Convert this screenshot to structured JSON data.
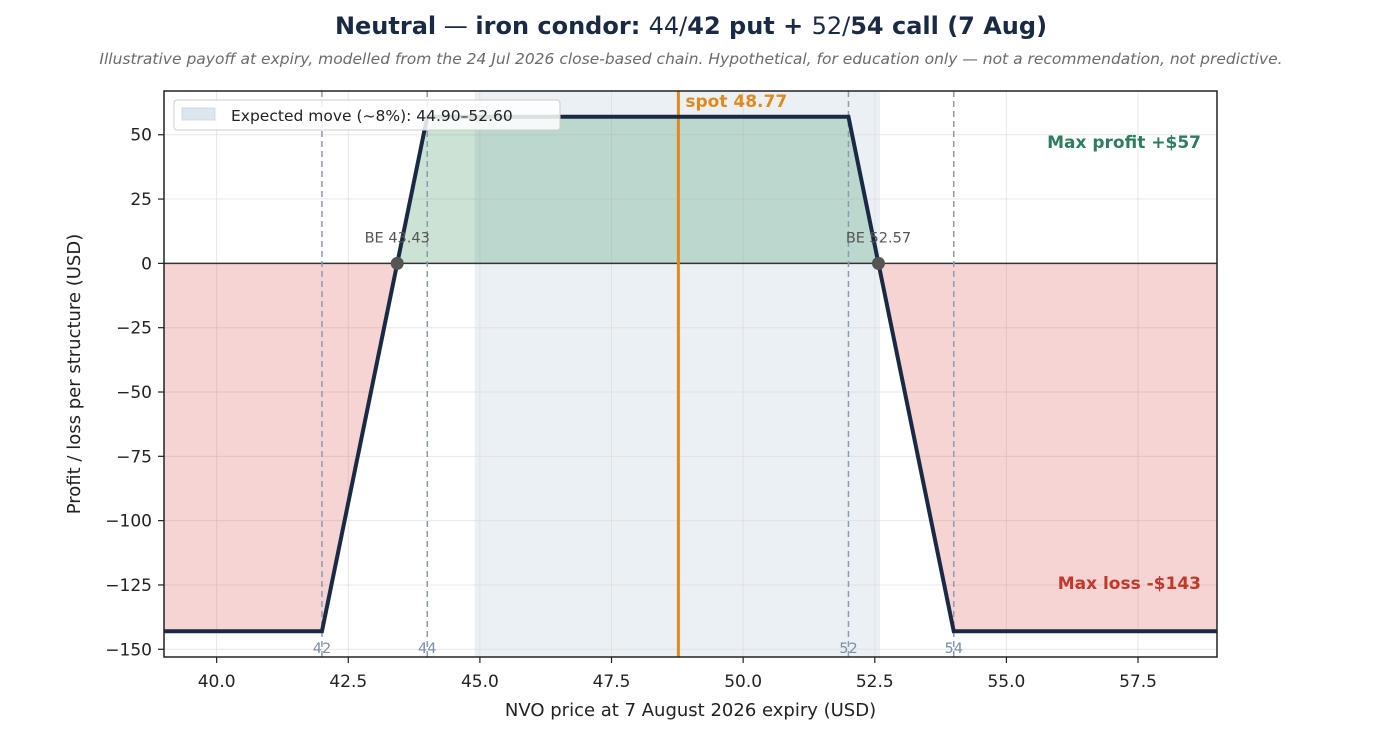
{
  "title_parts": [
    {
      "text": "Neutral",
      "bold": true
    },
    {
      "text": " — ",
      "bold": false
    },
    {
      "text": "iron condor: ",
      "bold": true
    },
    {
      "text": "44/",
      "bold": false
    },
    {
      "text": "42 put",
      "bold": true
    },
    {
      "text": " + ",
      "bold": true
    },
    {
      "text": "52/",
      "bold": false
    },
    {
      "text": "54 call (7 Aug)",
      "bold": true
    }
  ],
  "subtitle": "Illustrative payoff at expiry, modelled from the 24 Jul 2026 close-based chain. Hypothetical, for education only — not a recommendation, not predictive.",
  "chart_data": {
    "type": "line",
    "xlabel": "NVO price at 7 August 2026 expiry (USD)",
    "ylabel": "Profit / loss per structure (USD)",
    "xlim": [
      39,
      59
    ],
    "ylim": [
      -153,
      67
    ],
    "xticks": [
      40.0,
      42.5,
      45.0,
      47.5,
      50.0,
      52.5,
      55.0,
      57.5
    ],
    "xtick_labels": [
      "40.0",
      "42.5",
      "45.0",
      "47.5",
      "50.0",
      "52.5",
      "55.0",
      "57.5"
    ],
    "yticks": [
      50,
      25,
      0,
      -25,
      -50,
      -75,
      -100,
      -125,
      -150
    ],
    "ytick_labels": [
      "50",
      "25",
      "0",
      "−25",
      "−50",
      "−75",
      "−100",
      "−125",
      "−150"
    ],
    "grid": true,
    "series": [
      {
        "x": [
          39,
          42,
          44,
          52,
          54,
          59
        ],
        "y": [
          -143,
          -143,
          57,
          57,
          -143,
          -143
        ]
      }
    ],
    "strikes": [
      {
        "x": 42,
        "label": "42"
      },
      {
        "x": 44,
        "label": "44"
      },
      {
        "x": 52,
        "label": "52"
      },
      {
        "x": 54,
        "label": "54"
      }
    ],
    "breakevens": [
      {
        "x": 43.43,
        "y": 0,
        "label": "BE 43.43"
      },
      {
        "x": 52.57,
        "y": 0,
        "label": "BE 52.57"
      }
    ],
    "spot": {
      "x": 48.77,
      "label": "spot 48.77"
    },
    "expected_move": {
      "low": 44.9,
      "high": 52.6,
      "label": "Expected move (~8%): 44.90–52.60"
    },
    "max_profit": {
      "value": 57,
      "label": "Max profit +$57"
    },
    "max_loss": {
      "value": -143,
      "label": "Max loss  -$143"
    },
    "legend_position": "top-left",
    "colors": {
      "payoff": "#1b2a44",
      "profit_fill": "#2e8b57",
      "loss_fill": "#d9534f",
      "expected_move": "#dde6ef",
      "spot": "#e08a1e",
      "strike": "#8a9bb2",
      "max_profit_text": "#2e7d5b",
      "max_loss_text": "#c0392b",
      "be_marker": "#555555"
    }
  }
}
